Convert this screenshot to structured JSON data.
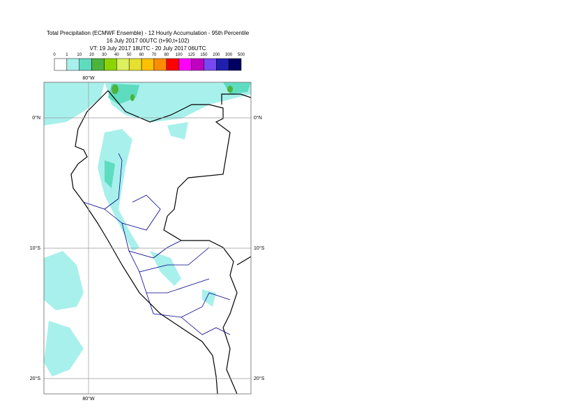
{
  "header": {
    "title": "Total Precipitation (ECMWF Ensemble) - 12 Hourly Accumulation - 95th Percentile",
    "base_time": "16 July 2017 00UTC (t+90,t+102)",
    "valid_time": "VT: 19 July 2017 18UTC - 20 July 2017 06UTC"
  },
  "legend": {
    "labels": [
      "0",
      "1",
      "10",
      "20",
      "30",
      "40",
      "50",
      "60",
      "70",
      "80",
      "100",
      "125",
      "150",
      "200",
      "300",
      "500"
    ],
    "colors": [
      "#ffffff",
      "#a8f0ec",
      "#5edcc0",
      "#4cb43c",
      "#8cd400",
      "#dcf060",
      "#e6e030",
      "#ffc000",
      "#ff8c00",
      "#ff0000",
      "#ff00ff",
      "#c000c0",
      "#7848f0",
      "#2020b0",
      "#000060"
    ]
  },
  "map": {
    "lon_labels": [
      "80°W"
    ],
    "lat_labels": [
      "0°N",
      "10°S",
      "20°S"
    ]
  }
}
